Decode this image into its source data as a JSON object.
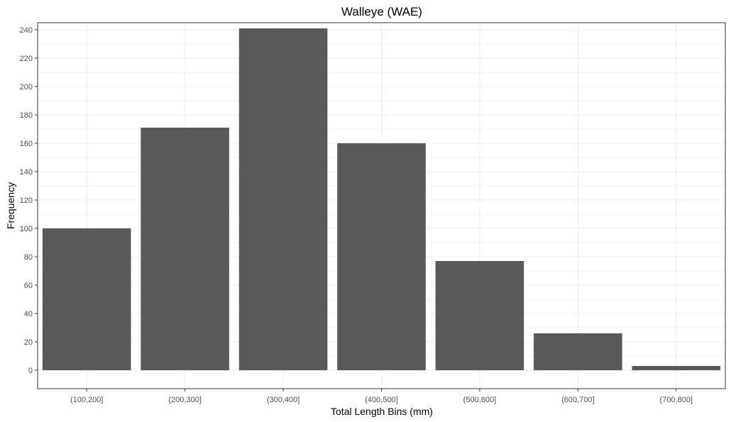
{
  "chart_data": {
    "type": "bar",
    "title": "Walleye (WAE)",
    "xlabel": "Total Length Bins (mm)",
    "ylabel": "Frequency",
    "categories": [
      "(100,200]",
      "(200,300]",
      "(300,400]",
      "(400,500]",
      "(500,600]",
      "(600,700]",
      "(700,800]"
    ],
    "values": [
      100,
      171,
      241,
      160,
      77,
      26,
      3
    ],
    "ylim": [
      -13,
      245
    ],
    "yticks": [
      0,
      20,
      40,
      60,
      80,
      100,
      120,
      140,
      160,
      180,
      200,
      220,
      240
    ],
    "grid": true,
    "colors": {
      "bar": "#595959",
      "grid_major": "#ebebeb",
      "grid_minor": "#f2f2f2",
      "border": "#333333"
    }
  }
}
